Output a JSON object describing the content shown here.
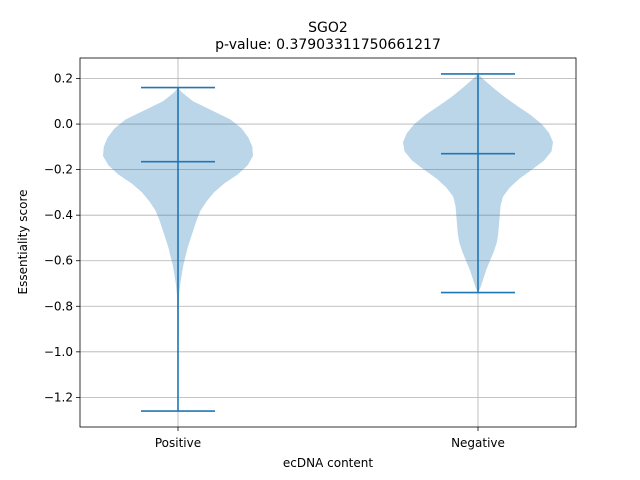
{
  "chart_data": {
    "type": "violin",
    "title": "SGO2",
    "subtitle": "p-value: 0.37903311750661217",
    "xlabel": "ecDNA content",
    "ylabel": "Essentiality score",
    "categories": [
      "Positive",
      "Negative"
    ],
    "ylim": [
      -1.33,
      0.29
    ],
    "yticks": [
      0.2,
      0.0,
      -0.2,
      -0.4,
      -0.6,
      -0.8,
      -1.0,
      -1.2
    ],
    "ytick_labels": [
      "0.2",
      "0.0",
      "−0.2",
      "−0.4",
      "−0.6",
      "−0.8",
      "−1.0",
      "−1.2"
    ],
    "grid": true,
    "series": [
      {
        "category": "Positive",
        "max": 0.16,
        "median": -0.165,
        "min": -1.26,
        "density": [
          [
            0.16,
            0.0
          ],
          [
            0.14,
            0.05
          ],
          [
            0.1,
            0.2
          ],
          [
            0.06,
            0.45
          ],
          [
            0.02,
            0.7
          ],
          [
            -0.02,
            0.85
          ],
          [
            -0.06,
            0.94
          ],
          [
            -0.1,
            0.99
          ],
          [
            -0.14,
            1.0
          ],
          [
            -0.18,
            0.93
          ],
          [
            -0.22,
            0.8
          ],
          [
            -0.26,
            0.62
          ],
          [
            -0.3,
            0.48
          ],
          [
            -0.34,
            0.38
          ],
          [
            -0.38,
            0.3
          ],
          [
            -0.42,
            0.25
          ],
          [
            -0.46,
            0.21
          ],
          [
            -0.5,
            0.17
          ],
          [
            -0.54,
            0.13
          ],
          [
            -0.58,
            0.1
          ],
          [
            -0.62,
            0.07
          ],
          [
            -0.66,
            0.05
          ],
          [
            -0.7,
            0.03
          ],
          [
            -0.75,
            0.015
          ],
          [
            -0.85,
            0.01
          ],
          [
            -1.0,
            0.008
          ],
          [
            -1.15,
            0.006
          ],
          [
            -1.26,
            0.0
          ]
        ]
      },
      {
        "category": "Negative",
        "max": 0.22,
        "median": -0.13,
        "min": -0.74,
        "density": [
          [
            0.22,
            0.0
          ],
          [
            0.2,
            0.06
          ],
          [
            0.16,
            0.2
          ],
          [
            0.12,
            0.35
          ],
          [
            0.08,
            0.52
          ],
          [
            0.04,
            0.7
          ],
          [
            0.0,
            0.85
          ],
          [
            -0.04,
            0.95
          ],
          [
            -0.08,
            1.0
          ],
          [
            -0.12,
            0.98
          ],
          [
            -0.16,
            0.88
          ],
          [
            -0.2,
            0.72
          ],
          [
            -0.24,
            0.55
          ],
          [
            -0.28,
            0.42
          ],
          [
            -0.32,
            0.33
          ],
          [
            -0.36,
            0.3
          ],
          [
            -0.4,
            0.29
          ],
          [
            -0.44,
            0.28
          ],
          [
            -0.48,
            0.27
          ],
          [
            -0.52,
            0.25
          ],
          [
            -0.56,
            0.21
          ],
          [
            -0.6,
            0.16
          ],
          [
            -0.64,
            0.11
          ],
          [
            -0.68,
            0.07
          ],
          [
            -0.72,
            0.03
          ],
          [
            -0.74,
            0.0
          ]
        ]
      }
    ],
    "colors": {
      "body": "#1f77b4",
      "body_opacity": 0.3,
      "line": "#1f77b4",
      "grid": "#b0b0b0"
    }
  }
}
